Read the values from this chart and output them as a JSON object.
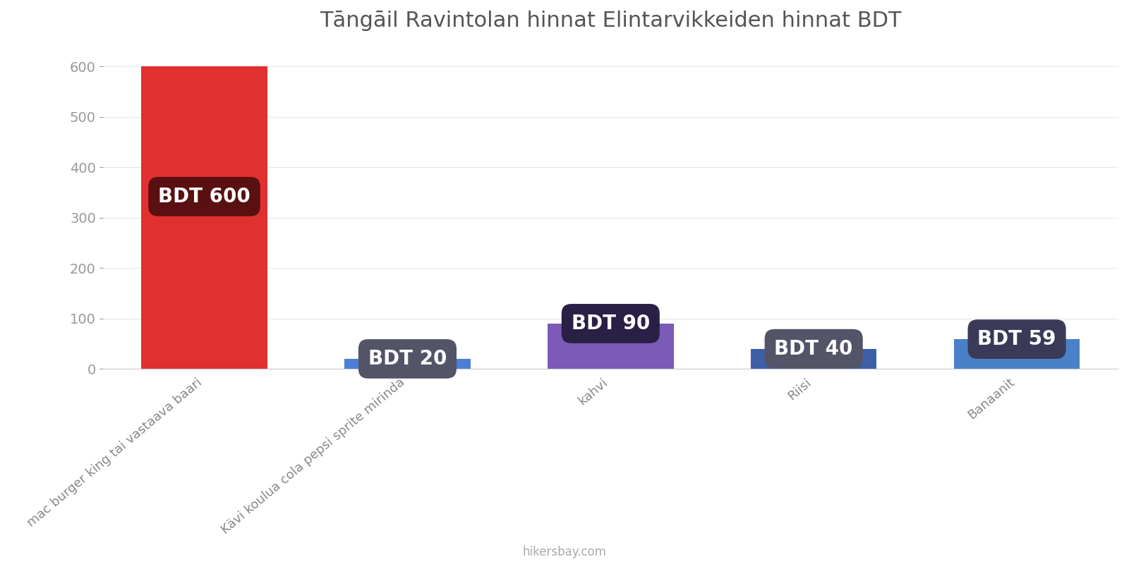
{
  "title": "Tāngāil Ravintolan hinnat Elintarvikkeiden hinnat BDT",
  "categories": [
    "mac burger king tai vastaava baari",
    "Kävi koulua cola pepsi sprite mirinda",
    "kahvi",
    "Riisi",
    "Banaanit"
  ],
  "values": [
    600,
    20,
    90,
    40,
    59
  ],
  "bar_colors": [
    "#e03030",
    "#4a7fd4",
    "#7b5ab8",
    "#3d5fa8",
    "#4a80c8"
  ],
  "label_bg_colors": [
    "#5a1010",
    "#545468",
    "#2a1f45",
    "#545468",
    "#3a3a58"
  ],
  "label_texts": [
    "BDT 600",
    "BDT 20",
    "BDT 90",
    "BDT 40",
    "BDT 59"
  ],
  "ylim": [
    0,
    640
  ],
  "yticks": [
    0,
    100,
    200,
    300,
    400,
    500,
    600
  ],
  "background_color": "#ffffff",
  "title_fontsize": 22,
  "tick_fontsize": 14,
  "label_fontsize": 20,
  "xlabel_fontsize": 13,
  "watermark": "hikersbay.com"
}
